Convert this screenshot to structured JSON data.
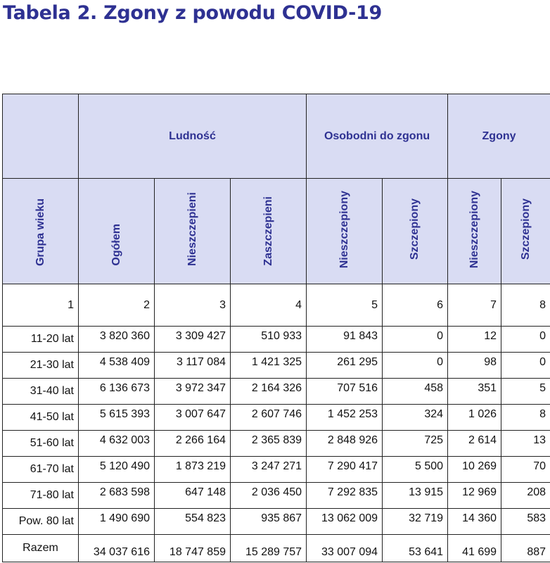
{
  "title": "Tabela 2. Zgony z powodu COVID-19",
  "table": {
    "group_headers": {
      "ludnosc": "Ludność",
      "osobodni": "Osobodni do zgonu",
      "zgony": "Zgony"
    },
    "column_headers": {
      "grupa_wieku": "Grupa wieku",
      "ogolem": "Ogółem",
      "niezaszczepieni": "Nieszczepieni",
      "zaszczepieni": "Zaszczepieni",
      "osobodni_nieszczepiony": "Nieszczepiony",
      "osobodni_szczepiony": "Szczepiony",
      "zgony_nieszczepiony": "Nieszczepiony",
      "zgony_szczepiony": "Szczepiony"
    },
    "column_numbers": [
      "1",
      "2",
      "3",
      "4",
      "5",
      "6",
      "7",
      "8"
    ],
    "rows": [
      {
        "age": "11-20 lat",
        "cells": [
          "3 820 360",
          "3 309 427",
          "510 933",
          "91 843",
          "0",
          "12",
          "0"
        ]
      },
      {
        "age": "21-30 lat",
        "cells": [
          "4 538 409",
          "3 117 084",
          "1 421 325",
          "261 295",
          "0",
          "98",
          "0"
        ]
      },
      {
        "age": "31-40 lat",
        "cells": [
          "6 136 673",
          "3 972 347",
          "2 164 326",
          "707 516",
          "458",
          "351",
          "5"
        ]
      },
      {
        "age": "41-50 lat",
        "cells": [
          "5 615 393",
          "3 007 647",
          "2 607 746",
          "1 452 253",
          "324",
          "1 026",
          "8"
        ]
      },
      {
        "age": "51-60 lat",
        "cells": [
          "4 632 003",
          "2 266 164",
          "2 365 839",
          "2 848 926",
          "725",
          "2 614",
          "13"
        ]
      },
      {
        "age": "61-70 lat",
        "cells": [
          "5 120 490",
          "1 873 219",
          "3 247 271",
          "7 290 417",
          "5 500",
          "10 269",
          "70"
        ]
      },
      {
        "age": "71-80 lat",
        "cells": [
          "2 683 598",
          "647 148",
          "2 036 450",
          "7 292 835",
          "13 915",
          "12 969",
          "208"
        ]
      },
      {
        "age": "Pow. 80 lat",
        "cells": [
          "1 490 690",
          "554 823",
          "935 867",
          "13 062 009",
          "32 719",
          "14 360",
          "583"
        ]
      }
    ],
    "total": {
      "age": "Razem",
      "cells": [
        "34 037 616",
        "18 747 859",
        "15 289 757",
        "33 007 094",
        "53 641",
        "41 699",
        "887"
      ]
    }
  },
  "colors": {
    "header_bg": "#d9dcf3",
    "header_text": "#2e3192",
    "title_text": "#2e3192"
  }
}
